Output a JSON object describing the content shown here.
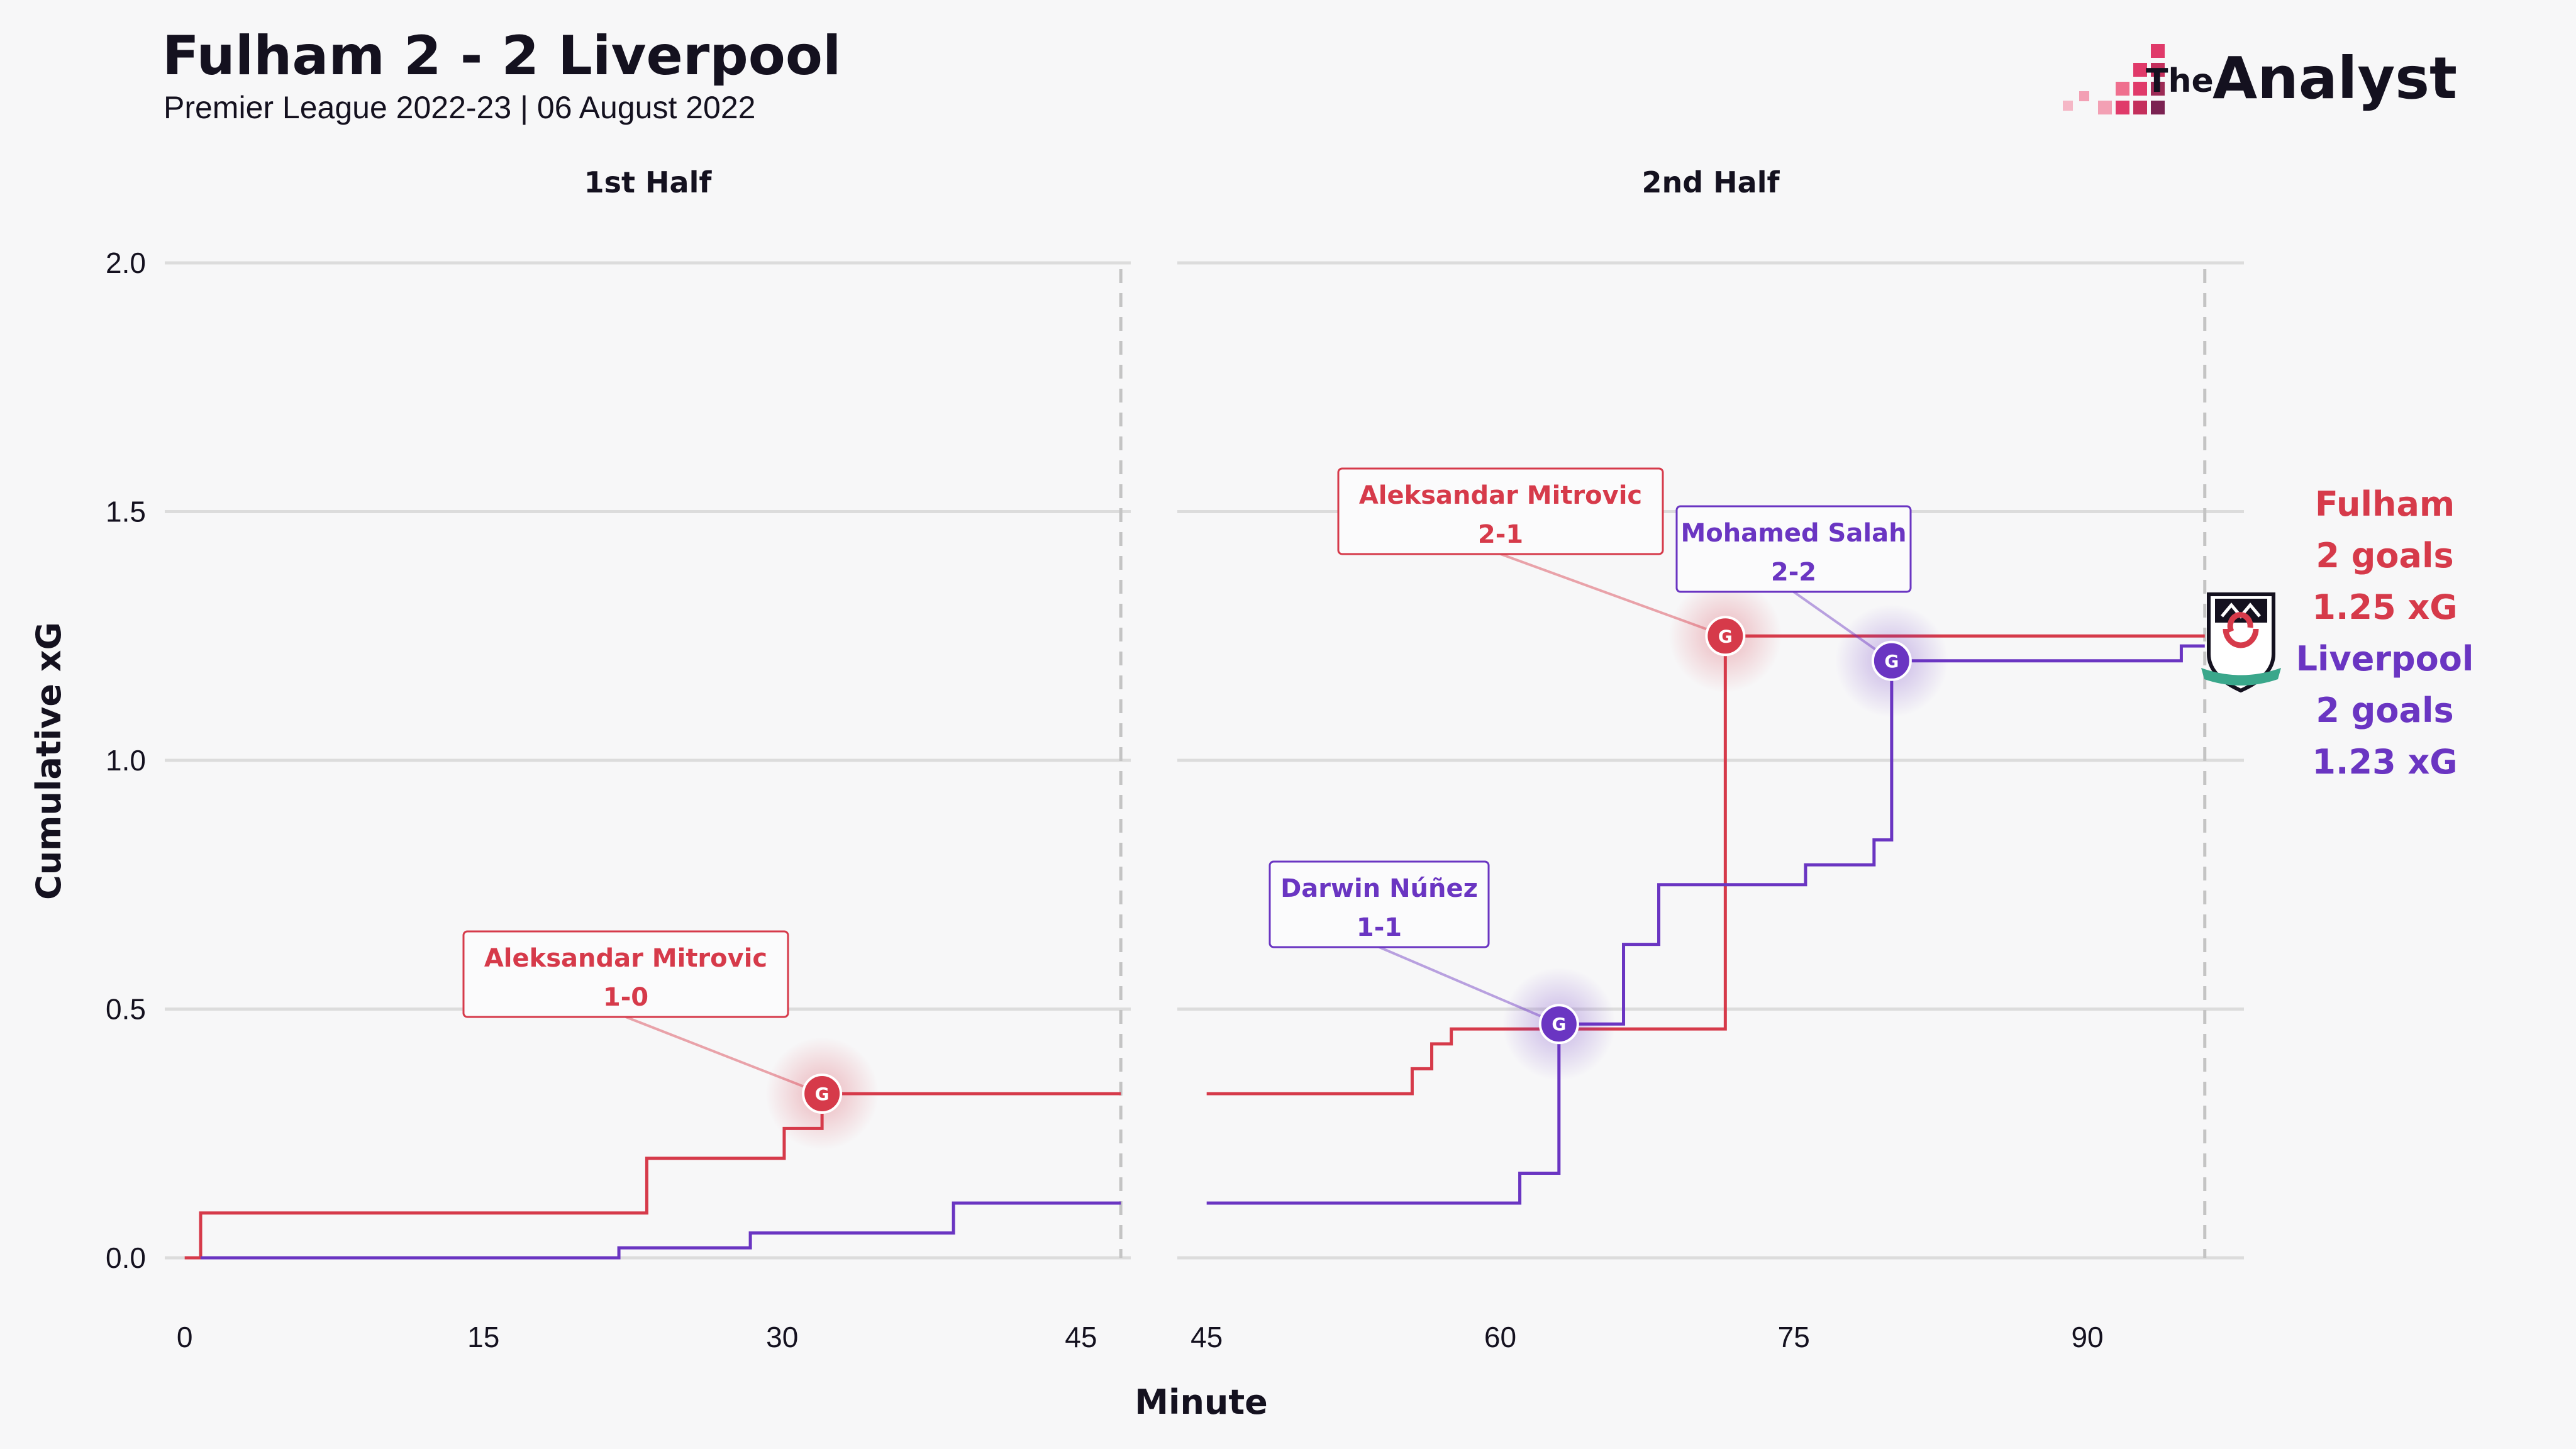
{
  "header": {
    "title": "Fulham 2 - 2 Liverpool",
    "subtitle": "Premier League 2022-23 | 06 August 2022"
  },
  "brand": {
    "prefix": "The",
    "name": "Analyst"
  },
  "colors": {
    "home": "#d63a4a",
    "away": "#6a35c2",
    "grid": "#dcdcdc",
    "background": "#f7f7f8"
  },
  "chart_data": {
    "type": "line",
    "step": true,
    "title": "Fulham 2 - 2 Liverpool",
    "subtitle": "Premier League 2022-23 | 06 August 2022",
    "xlabel": "Minute",
    "ylabel": "Cumulative xG",
    "ylim": [
      0,
      2.0
    ],
    "yticks": [
      "0.0",
      "0.5",
      "1.0",
      "1.5",
      "2.0"
    ],
    "grid": true,
    "panels": [
      {
        "label": "1st Half",
        "xlim": [
          -1,
          47.5
        ],
        "xticks": [
          0,
          15,
          30,
          45
        ],
        "period_end": 47,
        "series": [
          {
            "name": "Fulham",
            "color": "#d63a4a",
            "points": [
              [
                0,
                0
              ],
              [
                0.8,
                0.09
              ],
              [
                23.2,
                0.2
              ],
              [
                30.1,
                0.26
              ],
              [
                32,
                0.33
              ],
              [
                47,
                0.33
              ]
            ]
          },
          {
            "name": "Liverpool",
            "color": "#6a35c2",
            "points": [
              [
                0.8,
                0
              ],
              [
                21.8,
                0.02
              ],
              [
                28.4,
                0.05
              ],
              [
                38.6,
                0.11
              ],
              [
                47,
                0.11
              ]
            ]
          }
        ],
        "goals": [
          {
            "team": "Fulham",
            "minute": 32,
            "xg": 0.33,
            "player": "Aleksandar Mitrovic",
            "score": "1-0"
          }
        ]
      },
      {
        "label": "2nd Half",
        "xlim": [
          43.5,
          98
        ],
        "xticks": [
          45,
          60,
          75,
          90
        ],
        "period_end": 96,
        "series": [
          {
            "name": "Fulham",
            "color": "#d63a4a",
            "points": [
              [
                45,
                0.33
              ],
              [
                55.5,
                0.38
              ],
              [
                56.5,
                0.43
              ],
              [
                57.5,
                0.46
              ],
              [
                71.5,
                1.25
              ],
              [
                96,
                1.25
              ]
            ]
          },
          {
            "name": "Liverpool",
            "color": "#6a35c2",
            "points": [
              [
                45,
                0.11
              ],
              [
                61,
                0.17
              ],
              [
                63,
                0.47
              ],
              [
                66.3,
                0.63
              ],
              [
                68.1,
                0.75
              ],
              [
                75.6,
                0.79
              ],
              [
                79.1,
                0.84
              ],
              [
                80,
                1.2
              ],
              [
                94.8,
                1.23
              ],
              [
                96,
                1.23
              ]
            ]
          }
        ],
        "goals": [
          {
            "team": "Liverpool",
            "minute": 63,
            "xg": 0.47,
            "player": "Darwin Núñez",
            "score": "1-1"
          },
          {
            "team": "Fulham",
            "minute": 71.5,
            "xg": 1.25,
            "player": "Aleksandar Mitrovic",
            "score": "2-1"
          },
          {
            "team": "Liverpool",
            "minute": 80,
            "xg": 1.2,
            "player": "Mohamed Salah",
            "score": "2-2"
          }
        ]
      }
    ],
    "goal_marker": "G",
    "summary": [
      {
        "team": "Fulham",
        "goals": "2 goals",
        "xg": "1.25 xG",
        "color": "#d63a4a"
      },
      {
        "team": "Liverpool",
        "goals": "2 goals",
        "xg": "1.23 xG",
        "color": "#6a35c2"
      }
    ]
  }
}
